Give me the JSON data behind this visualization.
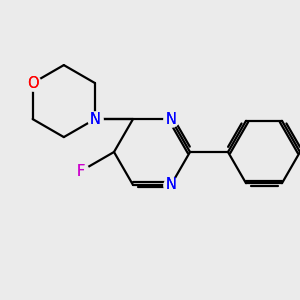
{
  "background_color": "#ebebeb",
  "bond_color": "#000000",
  "N_color": "#0000ff",
  "O_color": "#ff0000",
  "F_color": "#cc00cc",
  "line_width": 1.6,
  "figsize": [
    3.0,
    3.0
  ],
  "dpi": 100,
  "xlim": [
    0,
    300
  ],
  "ylim": [
    0,
    300
  ]
}
